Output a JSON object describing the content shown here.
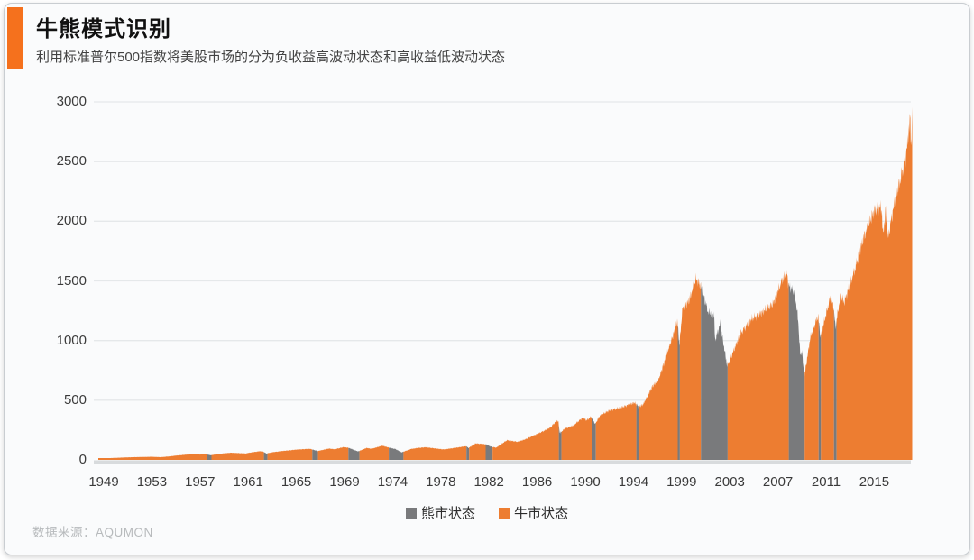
{
  "header": {
    "title": "牛熊模式识别",
    "subtitle": "利用标准普尔500指数将美股市场的分为负收益高波动状态和高收益低波动状态",
    "accent_color": "#f5711d"
  },
  "footer": {
    "source": "数据来源：AQUMON"
  },
  "chart_data": {
    "type": "area",
    "title": "牛熊模式识别",
    "subtitle": "利用标准普尔500指数将美股市场的分为负收益高波动状态和高收益低波动状态",
    "series_name": "标准普尔500指数",
    "ylim": [
      0,
      3000
    ],
    "yticks": [
      0,
      500,
      1000,
      1500,
      2000,
      2500,
      3000
    ],
    "xticks": [
      1949,
      1953,
      1957,
      1961,
      1965,
      1969,
      1974,
      1978,
      1982,
      1986,
      1990,
      1994,
      1999,
      2003,
      2007,
      2011,
      2015
    ],
    "x_end": 2018.15,
    "grid": "horizontal",
    "legend_position": "bottom-center",
    "legend": [
      {
        "label": "熊市状态",
        "color": "#797a7c"
      },
      {
        "label": "牛市状态",
        "color": "#ed7d31"
      }
    ],
    "bear_periods": [
      [
        1957.55,
        1957.95
      ],
      [
        1962.28,
        1962.6
      ],
      [
        1966.32,
        1966.8
      ],
      [
        1969.4,
        1970.55
      ],
      [
        1973.6,
        1974.88
      ],
      [
        1980.12,
        1980.34
      ],
      [
        1981.72,
        1982.28
      ],
      [
        1987.8,
        1988.02
      ],
      [
        1990.52,
        1990.86
      ],
      [
        1994.28,
        1994.55
      ],
      [
        1998.6,
        1998.82
      ],
      [
        2000.6,
        2002.82
      ],
      [
        2007.9,
        2009.22
      ],
      [
        2010.36,
        2010.56
      ],
      [
        2011.63,
        2011.86
      ]
    ],
    "anchors": [
      [
        1948.55,
        15.2
      ],
      [
        1949.3,
        14.1
      ],
      [
        1950,
        17
      ],
      [
        1951,
        21.5
      ],
      [
        1952,
        23.8
      ],
      [
        1953,
        26.2
      ],
      [
        1953.7,
        22.8
      ],
      [
        1954.5,
        29.5
      ],
      [
        1955,
        36
      ],
      [
        1956,
        45.3
      ],
      [
        1956.6,
        47.5
      ],
      [
        1957,
        45.5
      ],
      [
        1957.55,
        47.2
      ],
      [
        1957.85,
        39
      ],
      [
        1958,
        41
      ],
      [
        1959,
        55.5
      ],
      [
        1959.6,
        60
      ],
      [
        1960.8,
        53.8
      ],
      [
        1961,
        58.5
      ],
      [
        1961.95,
        72.5
      ],
      [
        1962.25,
        69.5
      ],
      [
        1962.5,
        53
      ],
      [
        1963,
        64
      ],
      [
        1964,
        76
      ],
      [
        1965,
        86
      ],
      [
        1966.1,
        93
      ],
      [
        1966.3,
        88
      ],
      [
        1966.78,
        74
      ],
      [
        1967.7,
        95
      ],
      [
        1968.2,
        89
      ],
      [
        1968.9,
        107
      ],
      [
        1969.4,
        102
      ],
      [
        1970.4,
        71
      ],
      [
        1971.3,
        100
      ],
      [
        1971.8,
        93
      ],
      [
        1972.95,
        119
      ],
      [
        1973.6,
        103
      ],
      [
        1974.2,
        92
      ],
      [
        1974.75,
        63
      ],
      [
        1975.5,
        91
      ],
      [
        1976,
        99
      ],
      [
        1976.75,
        106
      ],
      [
        1978.2,
        88
      ],
      [
        1979,
        98
      ],
      [
        1980.1,
        115
      ],
      [
        1980.3,
        100
      ],
      [
        1980.9,
        138
      ],
      [
        1981.7,
        131
      ],
      [
        1982.2,
        110
      ],
      [
        1982.6,
        103
      ],
      [
        1983.5,
        165
      ],
      [
        1984.4,
        151
      ],
      [
        1985,
        172
      ],
      [
        1986.5,
        240
      ],
      [
        1987.1,
        272
      ],
      [
        1987.65,
        333
      ],
      [
        1987.78,
        312
      ],
      [
        1987.88,
        224
      ],
      [
        1988.3,
        262
      ],
      [
        1989,
        288
      ],
      [
        1989.8,
        356
      ],
      [
        1990.1,
        332
      ],
      [
        1990.5,
        362
      ],
      [
        1990.82,
        300
      ],
      [
        1991.2,
        370
      ],
      [
        1992,
        415
      ],
      [
        1993,
        440
      ],
      [
        1994.1,
        480
      ],
      [
        1994.3,
        467
      ],
      [
        1994.55,
        444
      ],
      [
        1995,
        465
      ],
      [
        1996,
        620
      ],
      [
        1996.6,
        670
      ],
      [
        1997.6,
        920
      ],
      [
        1998.3,
        1090
      ],
      [
        1998.55,
        1170
      ],
      [
        1998.78,
        965
      ],
      [
        1999.1,
        1280
      ],
      [
        1999.6,
        1330
      ],
      [
        2000.2,
        1520
      ],
      [
        2000.6,
        1455
      ],
      [
        2000.9,
        1350
      ],
      [
        2001.2,
        1240
      ],
      [
        2001.7,
        1210
      ],
      [
        2001.78,
        1000
      ],
      [
        2002.2,
        1140
      ],
      [
        2002.78,
        790
      ],
      [
        2003.1,
        860
      ],
      [
        2003.9,
        1060
      ],
      [
        2004.8,
        1180
      ],
      [
        2005.6,
        1230
      ],
      [
        2006.6,
        1310
      ],
      [
        2007.4,
        1520
      ],
      [
        2007.75,
        1562
      ],
      [
        2007.9,
        1460
      ],
      [
        2008.4,
        1400
      ],
      [
        2008.68,
        1170
      ],
      [
        2008.85,
        880
      ],
      [
        2009,
        910
      ],
      [
        2009.18,
        690
      ],
      [
        2009.7,
        1030
      ],
      [
        2010.33,
        1210
      ],
      [
        2010.53,
        1035
      ],
      [
        2011.35,
        1360
      ],
      [
        2011.62,
        1290
      ],
      [
        2011.78,
        1110
      ],
      [
        2012.2,
        1380
      ],
      [
        2012.5,
        1320
      ],
      [
        2013.4,
        1600
      ],
      [
        2014.1,
        1860
      ],
      [
        2014.95,
        2080
      ],
      [
        2015.4,
        2125
      ],
      [
        2015.63,
        2095
      ],
      [
        2015.72,
        1875
      ],
      [
        2015.95,
        2090
      ],
      [
        2016.12,
        1850
      ],
      [
        2016.7,
        2170
      ],
      [
        2017.2,
        2360
      ],
      [
        2017.65,
        2560
      ],
      [
        2018,
        2870
      ],
      [
        2018.06,
        2590
      ],
      [
        2018.1,
        2740
      ],
      [
        2018.15,
        2925
      ]
    ],
    "colors": {
      "grid": "#e5e8ea",
      "baseline": "#d8dbdd",
      "axis_text": "#3a3a3a"
    }
  }
}
